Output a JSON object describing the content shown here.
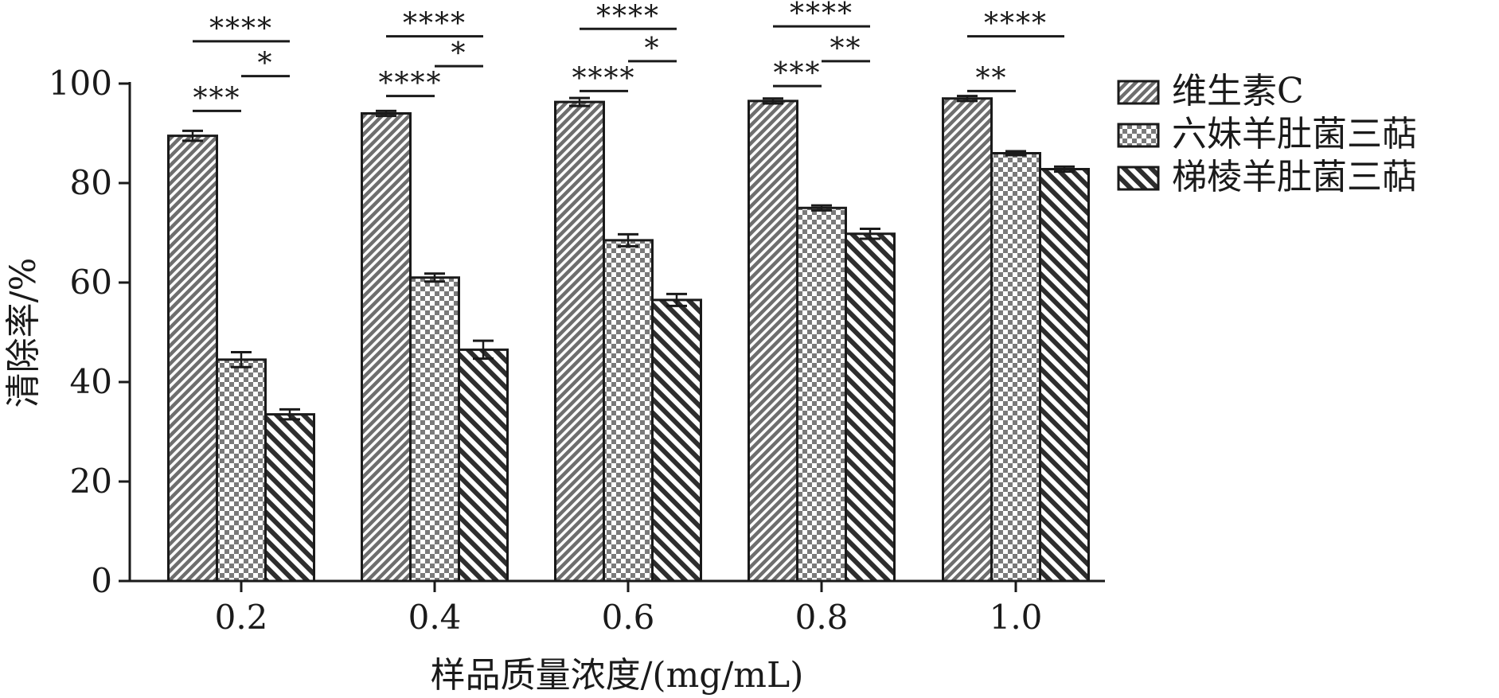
{
  "chart_data": {
    "type": "bar",
    "title": "",
    "xlabel": "样品质量浓度/(mg/mL)",
    "ylabel": "清除率/%",
    "categories": [
      "0.2",
      "0.4",
      "0.6",
      "0.8",
      "1.0"
    ],
    "ylim": [
      0,
      100
    ],
    "yticks": [
      "0",
      "20",
      "40",
      "60",
      "80",
      "100"
    ],
    "grid": false,
    "legend_position": "right",
    "series": [
      {
        "name": "维生素C",
        "values": [
          89.5,
          94.0,
          96.3,
          96.5,
          97.0
        ],
        "errors": [
          1.0,
          0.5,
          0.8,
          0.5,
          0.5
        ],
        "pattern": "diagonal-dense",
        "fill": "#8c8c8c"
      },
      {
        "name": "六妹羊肚菌三萜",
        "values": [
          44.5,
          61.0,
          68.5,
          75.0,
          86.0
        ],
        "errors": [
          1.5,
          0.8,
          1.2,
          0.5,
          0.4
        ],
        "pattern": "checker",
        "fill": "#7d7d7d"
      },
      {
        "name": "梯棱羊肚菌三萜",
        "values": [
          33.5,
          46.5,
          56.5,
          69.8,
          82.8
        ],
        "errors": [
          1.0,
          1.8,
          1.2,
          1.0,
          0.5
        ],
        "pattern": "diagonal-wide",
        "fill": "#3a3a3a"
      }
    ],
    "significance": [
      {
        "category": 0,
        "from": 0,
        "to": 1,
        "y": 94.5,
        "label": "***"
      },
      {
        "category": 0,
        "from": 0,
        "to": 2,
        "y": 108.5,
        "label": "****"
      },
      {
        "category": 0,
        "from": 1,
        "to": 2,
        "y": 101.5,
        "label": "*"
      },
      {
        "category": 1,
        "from": 0,
        "to": 1,
        "y": 97.5,
        "label": "****"
      },
      {
        "category": 1,
        "from": 0,
        "to": 2,
        "y": 109.5,
        "label": "****"
      },
      {
        "category": 1,
        "from": 1,
        "to": 2,
        "y": 103.5,
        "label": "*"
      },
      {
        "category": 2,
        "from": 0,
        "to": 1,
        "y": 98.5,
        "label": "****"
      },
      {
        "category": 2,
        "from": 0,
        "to": 2,
        "y": 111.0,
        "label": "****"
      },
      {
        "category": 2,
        "from": 1,
        "to": 2,
        "y": 104.5,
        "label": "*"
      },
      {
        "category": 3,
        "from": 0,
        "to": 1,
        "y": 99.5,
        "label": "***"
      },
      {
        "category": 3,
        "from": 0,
        "to": 2,
        "y": 111.5,
        "label": "****"
      },
      {
        "category": 3,
        "from": 1,
        "to": 2,
        "y": 104.5,
        "label": "**"
      },
      {
        "category": 4,
        "from": 0,
        "to": 1,
        "y": 98.5,
        "label": "**"
      },
      {
        "category": 4,
        "from": 0,
        "to": 2,
        "y": 109.5,
        "label": "****"
      }
    ]
  }
}
